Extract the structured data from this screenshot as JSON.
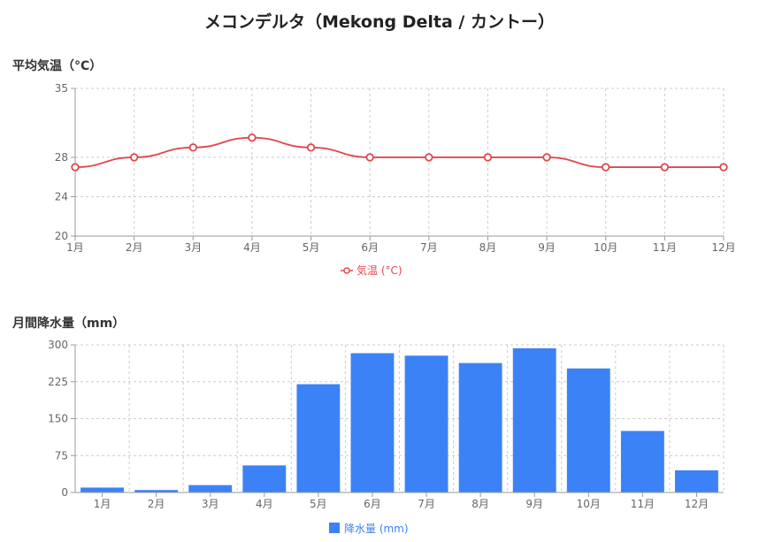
{
  "title": "メコンデルタ（Mekong Delta / カントー）",
  "colors": {
    "temperature": "#e0474c",
    "rainfall": "#3b82f6",
    "grid": "#cccccc",
    "axis": "#999999"
  },
  "chart_data": [
    {
      "type": "line",
      "section_title": "平均気温（°C）",
      "categories": [
        "1月",
        "2月",
        "3月",
        "4月",
        "5月",
        "6月",
        "7月",
        "8月",
        "9月",
        "10月",
        "11月",
        "12月"
      ],
      "series": [
        {
          "name": "気温 (°C)",
          "values": [
            27,
            28,
            29,
            30,
            29,
            28,
            28,
            28,
            28,
            27,
            27,
            27
          ]
        }
      ],
      "ylim": [
        20,
        35
      ],
      "yticks": [
        20,
        24,
        28,
        35
      ],
      "grid": true,
      "legend": "bottom"
    },
    {
      "type": "bar",
      "section_title": "月間降水量（mm）",
      "categories": [
        "1月",
        "2月",
        "3月",
        "4月",
        "5月",
        "6月",
        "7月",
        "8月",
        "9月",
        "10月",
        "11月",
        "12月"
      ],
      "series": [
        {
          "name": "降水量 (mm)",
          "values": [
            10,
            5,
            15,
            55,
            220,
            283,
            278,
            263,
            293,
            252,
            125,
            45
          ]
        }
      ],
      "ylim": [
        0,
        300
      ],
      "yticks": [
        0,
        75,
        150,
        225,
        300
      ],
      "grid": true,
      "legend": "bottom"
    }
  ]
}
